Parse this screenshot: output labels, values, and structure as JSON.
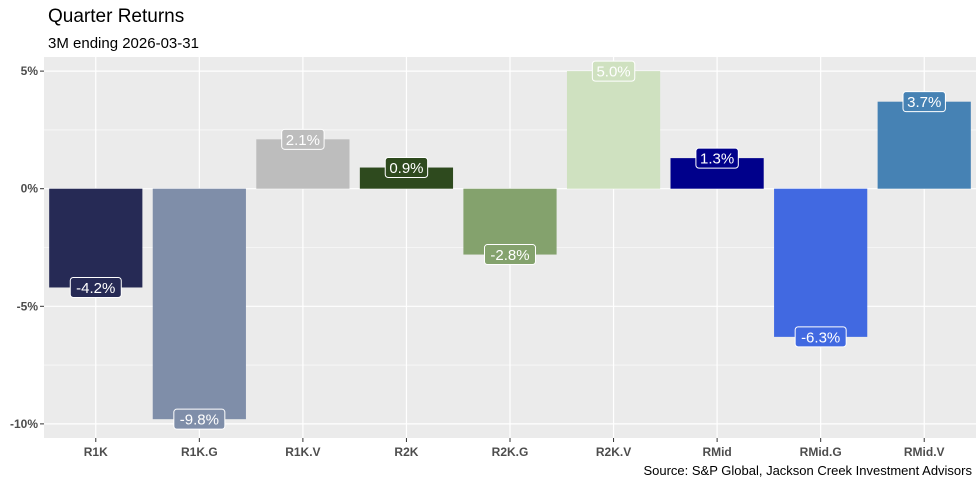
{
  "chart_data": {
    "type": "bar",
    "title": "Quarter Returns",
    "subtitle": "3M ending 2026-03-31",
    "caption": "Source: S&P Global, Jackson Creek Investment Advisors",
    "xlabel": "",
    "ylabel": "",
    "categories": [
      "R1K",
      "R1K.G",
      "R1K.V",
      "R2K",
      "R2K.G",
      "R2K.V",
      "RMid",
      "RMid.G",
      "RMid.V"
    ],
    "values": [
      -4.2,
      -9.8,
      2.1,
      0.9,
      -2.8,
      5.0,
      1.3,
      -6.3,
      3.7
    ],
    "data_labels": [
      "-4.2%",
      "-9.8%",
      "2.1%",
      "0.9%",
      "-2.8%",
      "5.0%",
      "1.3%",
      "-6.3%",
      "3.7%"
    ],
    "colors": [
      "#262a55",
      "#7f8ea9",
      "#bdbdbd",
      "#2e4a1e",
      "#84a26d",
      "#cfe1c0",
      "#00008b",
      "#4169e1",
      "#4682b4"
    ],
    "ylim": [
      -10.6,
      5.6
    ],
    "y_ticks": [
      5,
      0,
      -5,
      -10
    ],
    "y_tick_labels": [
      "5%",
      "0%",
      "-5%",
      "-10%"
    ],
    "grid": true,
    "legend": "none",
    "panel_background": "#ebebeb"
  }
}
